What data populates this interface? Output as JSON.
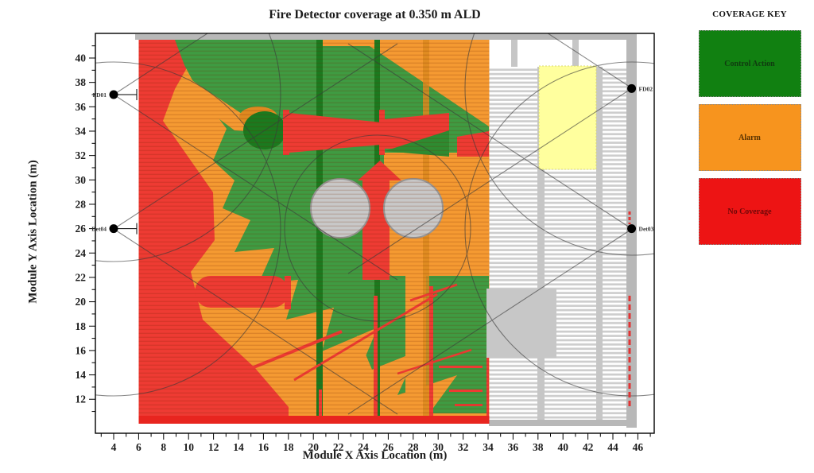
{
  "title": "Fire Detector coverage at 0.350 m ALD",
  "legend": {
    "title": "COVERAGE KEY",
    "items": [
      {
        "label": "Control Action",
        "color": "#118011",
        "text_color": "#103a10"
      },
      {
        "label": "Alarm",
        "color": "#F7941E",
        "text_color": "#5a3300"
      },
      {
        "label": "No Coverage",
        "color": "#ED1414",
        "text_color": "#6e0808"
      }
    ]
  },
  "chart_data": {
    "type": "heatmap",
    "title": "Fire Detector coverage at 0.350 m ALD",
    "xlabel": "Module X Axis Location (m)",
    "ylabel": "Module Y Axis Location (m)",
    "xlim": [
      2.5,
      47.5
    ],
    "ylim": [
      10.7,
      41.8
    ],
    "x_major_ticks": [
      4,
      6,
      8,
      10,
      12,
      14,
      16,
      18,
      20,
      22,
      24,
      26,
      28,
      30,
      32,
      34,
      36,
      38,
      40,
      42,
      44,
      46
    ],
    "y_major_ticks": [
      12,
      14,
      16,
      18,
      20,
      22,
      24,
      26,
      28,
      30,
      32,
      34,
      36,
      38,
      40
    ],
    "minor_tick_step_m": 1,
    "grid": false,
    "coverage_categories": [
      {
        "name": "Control Action",
        "color": "#3F9B42"
      },
      {
        "name": "Alarm",
        "color": "#F59A32"
      },
      {
        "name": "No Coverage",
        "color": "#EE3B33"
      }
    ],
    "detectors": [
      {
        "id": "FD01",
        "x_m": 4,
        "y_m": 37,
        "label_side": "left"
      },
      {
        "id": "FD02",
        "x_m": 45.5,
        "y_m": 37.5,
        "label_side": "right"
      },
      {
        "id": "Det03",
        "x_m": 45.5,
        "y_m": 26,
        "label_side": "right"
      },
      {
        "id": "Det04",
        "x_m": 4,
        "y_m": 26,
        "label_side": "left"
      }
    ],
    "features": [
      {
        "name": "no-coverage-left-band",
        "category": "No Coverage",
        "x_range_m": [
          6,
          9
        ],
        "y_range_m": [
          11,
          41.5
        ]
      },
      {
        "name": "no-coverage-bottom-strip",
        "category": "No Coverage",
        "x_range_m": [
          6,
          34
        ],
        "y_range_m": [
          11,
          11.7
        ]
      },
      {
        "name": "control-action-core",
        "category": "Control Action",
        "x_range_m": [
          10,
          34
        ],
        "y_range_m": [
          13,
          41
        ]
      },
      {
        "name": "alarm-transition-zones",
        "category": "Alarm",
        "x_range_m": [
          8,
          34
        ],
        "y_range_m": [
          11,
          41.5
        ]
      },
      {
        "name": "storage-vessels",
        "shape": "circle-pair",
        "centers_m": [
          [
            22,
            28
          ],
          [
            28,
            28
          ]
        ],
        "radius_m": 2.4,
        "color": "#C8C8C8"
      },
      {
        "name": "yellow-room",
        "shape": "rect",
        "x_range_m": [
          38,
          42.5
        ],
        "y_range_m": [
          31,
          39.5
        ],
        "color": "#FFFF9E"
      },
      {
        "name": "gray-room",
        "shape": "rect",
        "x_range_m": [
          33.5,
          39.5
        ],
        "y_range_m": [
          15.5,
          21
        ],
        "color": "#C7C7C7"
      },
      {
        "name": "open-grating-deck",
        "shape": "striped-area",
        "x_range_m": [
          34,
          46
        ],
        "y_range_m": [
          11,
          41.5
        ],
        "color": "#CDCDCD"
      }
    ]
  }
}
